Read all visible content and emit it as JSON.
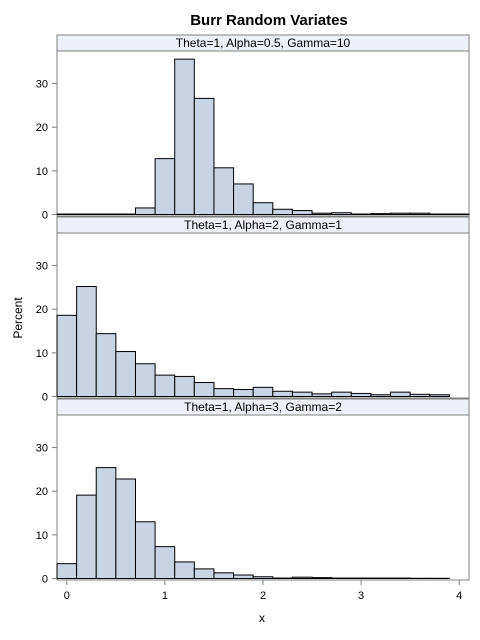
{
  "chart_data": {
    "type": "bar",
    "title": "Burr Random Variates",
    "xlabel": "x",
    "ylabel": "Percent",
    "xlim": [
      -0.1,
      4.1
    ],
    "ylim": [
      0,
      37
    ],
    "xticks": [
      0,
      1,
      2,
      3,
      4
    ],
    "yticks": [
      0,
      10,
      20,
      30
    ],
    "bin_width": 0.2,
    "bin_start": -0.1,
    "panels": [
      {
        "title": "Theta=1, Alpha=0.5, Gamma=10",
        "values": [
          0.1,
          0.1,
          0.1,
          0.1,
          1.5,
          12.8,
          35.6,
          26.6,
          10.7,
          7.0,
          2.7,
          1.2,
          0.9,
          0.3,
          0.4,
          0.1,
          0.2,
          0.3,
          0.3,
          0.1,
          0.1
        ]
      },
      {
        "title": "Theta=1, Alpha=2, Gamma=1",
        "values": [
          18.6,
          25.2,
          14.4,
          10.3,
          7.5,
          4.9,
          4.6,
          3.2,
          1.8,
          1.6,
          2.1,
          1.2,
          1.0,
          0.6,
          1.0,
          0.7,
          0.4,
          1.0,
          0.5,
          0.4
        ]
      },
      {
        "title": "Theta=1, Alpha=3, Gamma=2",
        "values": [
          3.4,
          19.1,
          25.4,
          22.8,
          13.0,
          7.3,
          3.8,
          2.2,
          1.3,
          0.8,
          0.4,
          0.1,
          0.3,
          0.2,
          0.1,
          0.1,
          0.1,
          0.1,
          0.05,
          0.05
        ]
      }
    ]
  }
}
